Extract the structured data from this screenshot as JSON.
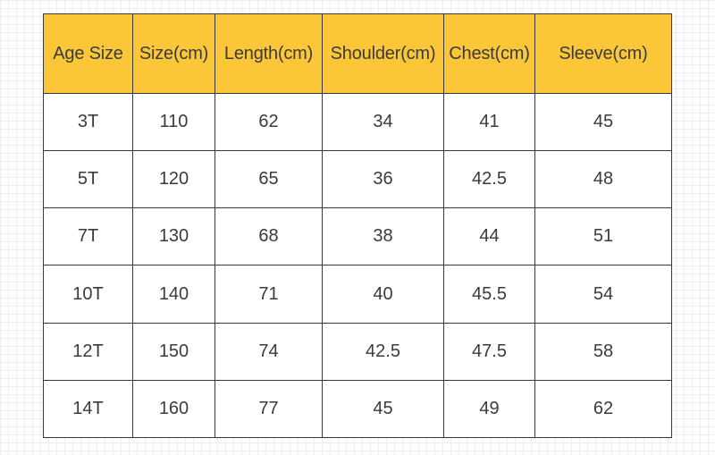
{
  "table": {
    "headers": [
      "Age Size",
      "Size(cm)",
      "Length(cm)",
      "Shoulder(cm)",
      "Chest(cm)",
      "Sleeve(cm)"
    ],
    "rows": [
      [
        "3T",
        "110",
        "62",
        "34",
        "41",
        "45"
      ],
      [
        "5T",
        "120",
        "65",
        "36",
        "42.5",
        "48"
      ],
      [
        "7T",
        "130",
        "68",
        "38",
        "44",
        "51"
      ],
      [
        "10T",
        "140",
        "71",
        "40",
        "45.5",
        "54"
      ],
      [
        "12T",
        "150",
        "74",
        "42.5",
        "47.5",
        "58"
      ],
      [
        "14T",
        "160",
        "77",
        "45",
        "49",
        "62"
      ]
    ]
  },
  "colors": {
    "header_background": "#fbc738",
    "border": "#3a3a3a",
    "text": "#3b3b3b",
    "grid_background": "#ececf4"
  }
}
